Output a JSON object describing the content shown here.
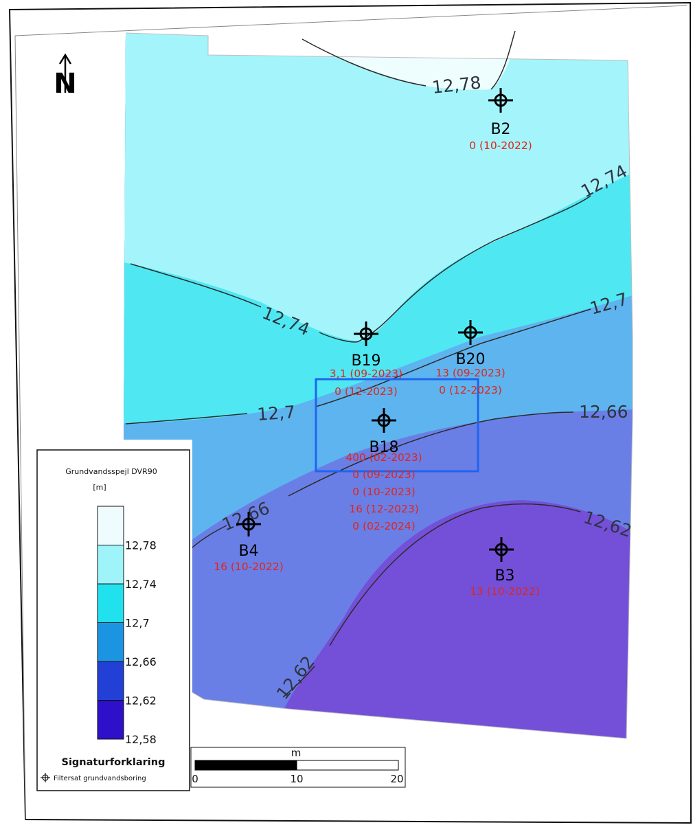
{
  "north_arrow": {
    "label": "N"
  },
  "contours": [
    {
      "value": "12,78"
    },
    {
      "value": "12,74"
    },
    {
      "value": "12,74"
    },
    {
      "value": "12,7"
    },
    {
      "value": "12,7"
    },
    {
      "value": "12,66"
    },
    {
      "value": "12,66"
    },
    {
      "value": "12,62"
    },
    {
      "value": "12,62"
    }
  ],
  "wells": [
    {
      "name": "B2",
      "observations": [
        "0 (10-2022)"
      ]
    },
    {
      "name": "B19",
      "observations": [
        "3,1 (09-2023)",
        "0 (12-2023)"
      ]
    },
    {
      "name": "B20",
      "observations": [
        "13 (09-2023)",
        "0 (12-2023)"
      ]
    },
    {
      "name": "B18",
      "observations": [
        "400 (02-2023)",
        "0 (09-2023)",
        "0 (10-2023)",
        "16 (12-2023)",
        "0 (02-2024)"
      ]
    },
    {
      "name": "B4",
      "observations": [
        "16 (10-2022)"
      ]
    },
    {
      "name": "B3",
      "observations": [
        "13 (10-2022)"
      ]
    }
  ],
  "legend": {
    "title_line1": "Grundvandsspejl DVR90",
    "title_line2": "[m]",
    "classes": [
      {
        "color": "#eefcfd"
      },
      {
        "color": "#9ff4fa"
      },
      {
        "color": "#22e1ee"
      },
      {
        "color": "#1b95e2"
      },
      {
        "color": "#2240d6"
      },
      {
        "color": "#2e0fca"
      }
    ],
    "ticks": [
      "12,78",
      "12,74",
      "12,7",
      "12,66",
      "12,62",
      "12,58"
    ],
    "heading": "Signaturforklaring",
    "symbol_label": "Filtersat grundvandsboring"
  },
  "scale_bar": {
    "unit": "m",
    "ticks": [
      "0",
      "10",
      "20"
    ]
  },
  "colors": {
    "zone_above_1278": "#eefdfe",
    "zone_1274_1278": "#a4f5fb",
    "zone_1270_1274": "#4fe8f2",
    "zone_1266_1270": "#5eb4ee",
    "zone_1262_1266": "#6a7fe6",
    "zone_below_1262": "#7450d9",
    "highlight_rect": "#1f64f0",
    "observation_text": "#e0251b"
  }
}
